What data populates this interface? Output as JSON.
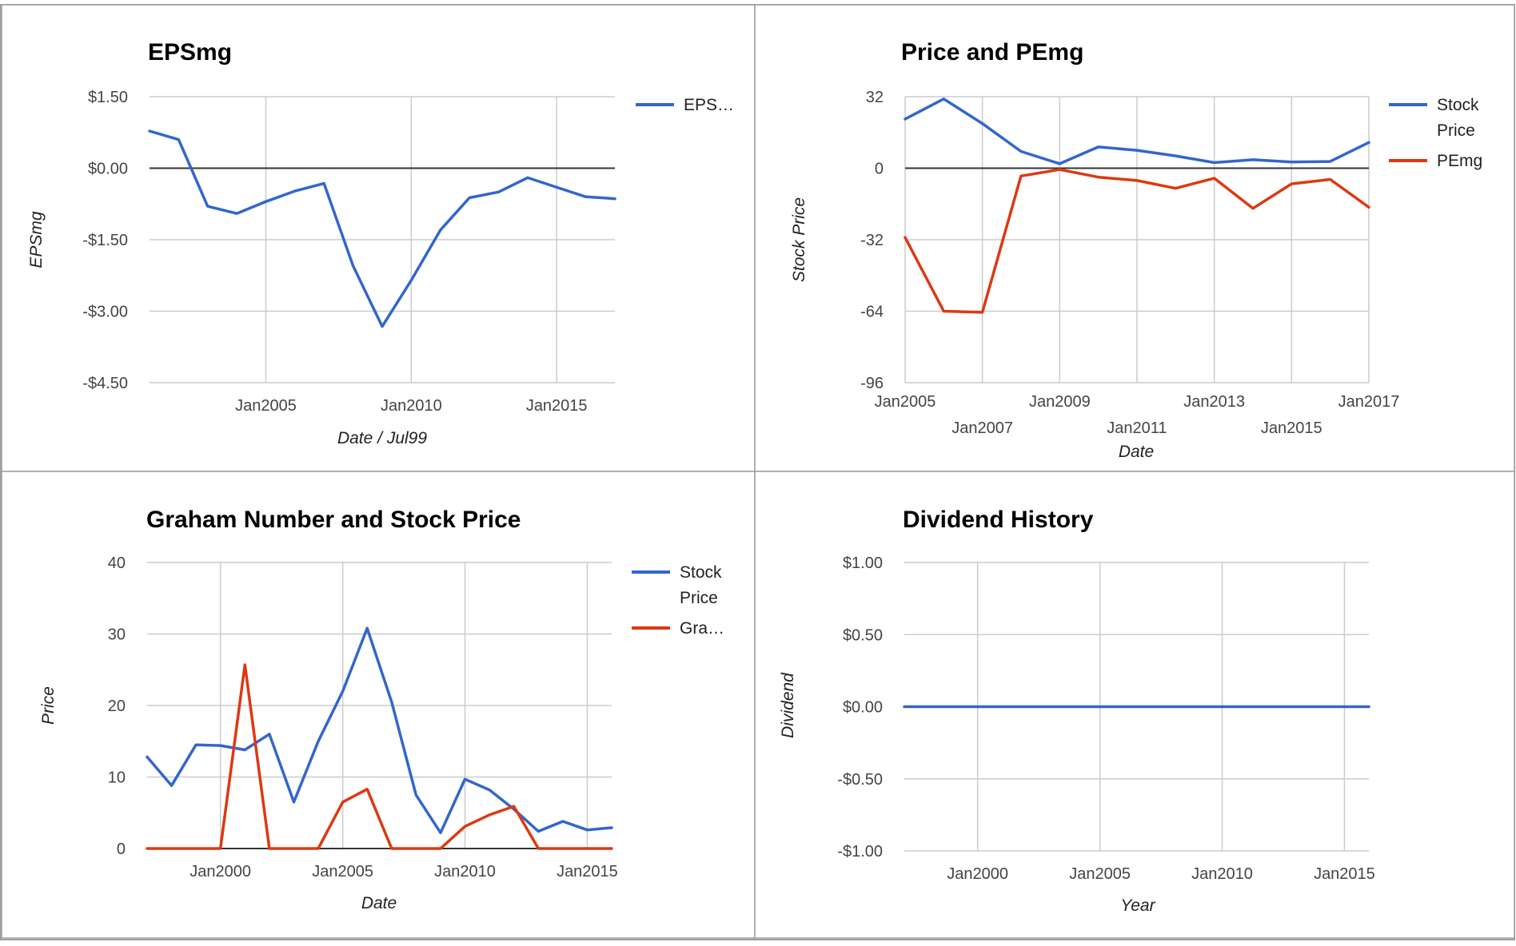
{
  "colors": {
    "series_blue": "#3366cc",
    "series_red": "#dc3912",
    "grid": "#cccccc",
    "zero_line": "#333333",
    "frame": "#9e9e9e",
    "text": "#444444",
    "title": "#000000"
  },
  "chart_data": [
    {
      "id": "epsmg",
      "type": "line",
      "title": "EPSmg",
      "xlabel": "Date / Jul99",
      "ylabel": "EPSmg",
      "x_type": "date",
      "xlim": [
        "2001-01-01",
        "2017-01-01"
      ],
      "ylim": [
        -4.5,
        1.5
      ],
      "y_ticks": [
        1.5,
        0,
        -1.5,
        -3,
        -4.5
      ],
      "y_tick_labels": [
        "$1.50",
        "$0.00",
        "-$1.50",
        "-$3.00",
        "-$4.50"
      ],
      "x_ticks": [
        "2005-01-01",
        "2010-01-01",
        "2015-01-01"
      ],
      "x_tick_labels": [
        "Jan2005",
        "Jan2010",
        "Jan2015"
      ],
      "x_gridlines": true,
      "y_gridlines": true,
      "legend_position": "right",
      "legend": [
        "EPS…"
      ],
      "series": [
        {
          "name": "EPS…",
          "color": "#3366cc",
          "points": [
            [
              "2001-01-01",
              0.78
            ],
            [
              "2002-01-01",
              0.6
            ],
            [
              "2003-01-01",
              -0.8
            ],
            [
              "2004-01-01",
              -0.95
            ],
            [
              "2005-01-01",
              -0.7
            ],
            [
              "2006-01-01",
              -0.48
            ],
            [
              "2007-01-01",
              -0.32
            ],
            [
              "2008-01-01",
              -2.05
            ],
            [
              "2009-01-01",
              -3.32
            ],
            [
              "2010-01-01",
              -2.35
            ],
            [
              "2011-01-01",
              -1.3
            ],
            [
              "2012-01-01",
              -0.62
            ],
            [
              "2013-01-01",
              -0.5
            ],
            [
              "2014-01-01",
              -0.2
            ],
            [
              "2015-01-01",
              -0.4
            ],
            [
              "2016-01-01",
              -0.6
            ],
            [
              "2017-01-01",
              -0.64
            ]
          ]
        }
      ]
    },
    {
      "id": "price-pemg",
      "type": "line",
      "title": "Price and PEmg",
      "xlabel": "Date",
      "ylabel": "Stock Price",
      "x_type": "date",
      "xlim": [
        "2005-01-01",
        "2017-01-01"
      ],
      "ylim": [
        -96,
        32
      ],
      "y_ticks": [
        32,
        0,
        -32,
        -64,
        -96
      ],
      "y_tick_labels": [
        "32",
        "0",
        "-32",
        "-64",
        "-96"
      ],
      "x_ticks": [
        "2005-01-01",
        "2007-01-01",
        "2009-01-01",
        "2011-01-01",
        "2013-01-01",
        "2015-01-01",
        "2017-01-01"
      ],
      "x_tick_labels": [
        "Jan2005",
        "Jan2007",
        "Jan2009",
        "Jan2011",
        "Jan2013",
        "Jan2015",
        "Jan2017"
      ],
      "x_gridlines": true,
      "y_gridlines": true,
      "legend_position": "right",
      "legend": [
        "Stock Price",
        "PEmg"
      ],
      "series": [
        {
          "name": "Stock Price",
          "color": "#3366cc",
          "points": [
            [
              "2005-01-01",
              22
            ],
            [
              "2006-01-01",
              31
            ],
            [
              "2007-01-01",
              20
            ],
            [
              "2008-01-01",
              7.5
            ],
            [
              "2009-01-01",
              2
            ],
            [
              "2010-01-01",
              9.5
            ],
            [
              "2011-01-01",
              8
            ],
            [
              "2012-01-01",
              5.5
            ],
            [
              "2013-01-01",
              2.5
            ],
            [
              "2014-01-01",
              3.8
            ],
            [
              "2015-01-01",
              2.8
            ],
            [
              "2016-01-01",
              3
            ],
            [
              "2017-01-01",
              11.5
            ]
          ]
        },
        {
          "name": "PEmg",
          "color": "#dc3912",
          "points": [
            [
              "2005-01-01",
              -31
            ],
            [
              "2006-01-01",
              -64
            ],
            [
              "2007-01-01",
              -64.5
            ],
            [
              "2008-01-01",
              -3.5
            ],
            [
              "2009-01-01",
              -0.6
            ],
            [
              "2010-01-01",
              -4
            ],
            [
              "2011-01-01",
              -5.5
            ],
            [
              "2012-01-01",
              -9
            ],
            [
              "2013-01-01",
              -4.5
            ],
            [
              "2014-01-01",
              -18
            ],
            [
              "2015-01-01",
              -7
            ],
            [
              "2016-01-01",
              -5
            ],
            [
              "2017-01-01",
              -17.5
            ]
          ]
        }
      ]
    },
    {
      "id": "graham",
      "type": "line",
      "title": "Graham Number and Stock Price",
      "xlabel": "Date",
      "ylabel": "Price",
      "x_type": "date",
      "xlim": [
        "1997-01-01",
        "2016-01-01"
      ],
      "ylim": [
        0,
        40
      ],
      "y_ticks": [
        40,
        30,
        20,
        10,
        0
      ],
      "y_tick_labels": [
        "40",
        "30",
        "20",
        "10",
        "0"
      ],
      "x_ticks": [
        "2000-01-01",
        "2005-01-01",
        "2010-01-01",
        "2015-01-01"
      ],
      "x_tick_labels": [
        "Jan2000",
        "Jan2005",
        "Jan2010",
        "Jan2015"
      ],
      "x_gridlines": true,
      "y_gridlines": true,
      "legend_position": "right",
      "legend": [
        "Stock Price",
        "Gra…"
      ],
      "series": [
        {
          "name": "Stock Price",
          "color": "#3366cc",
          "points": [
            [
              "1997-01-01",
              12.8
            ],
            [
              "1998-01-01",
              8.8
            ],
            [
              "1999-01-01",
              14.5
            ],
            [
              "2000-01-01",
              14.4
            ],
            [
              "2001-01-01",
              13.8
            ],
            [
              "2002-01-01",
              16
            ],
            [
              "2003-01-01",
              6.5
            ],
            [
              "2004-01-01",
              15
            ],
            [
              "2005-01-01",
              22
            ],
            [
              "2006-01-01",
              30.8
            ],
            [
              "2007-01-01",
              20.5
            ],
            [
              "2008-01-01",
              7.5
            ],
            [
              "2009-01-01",
              2.2
            ],
            [
              "2010-01-01",
              9.7
            ],
            [
              "2011-01-01",
              8.2
            ],
            [
              "2012-01-01",
              5.5
            ],
            [
              "2013-01-01",
              2.4
            ],
            [
              "2014-01-01",
              3.8
            ],
            [
              "2015-01-01",
              2.6
            ],
            [
              "2016-01-01",
              2.9
            ]
          ]
        },
        {
          "name": "Gra…",
          "color": "#dc3912",
          "points": [
            [
              "1997-01-01",
              0
            ],
            [
              "1998-01-01",
              0
            ],
            [
              "1999-01-01",
              0
            ],
            [
              "2000-01-01",
              0
            ],
            [
              "2001-01-01",
              25.7
            ],
            [
              "2002-01-01",
              0
            ],
            [
              "2003-01-01",
              0
            ],
            [
              "2004-01-01",
              0
            ],
            [
              "2005-01-01",
              6.5
            ],
            [
              "2006-01-01",
              8.3
            ],
            [
              "2007-01-01",
              0
            ],
            [
              "2008-01-01",
              0
            ],
            [
              "2009-01-01",
              0
            ],
            [
              "2010-01-01",
              3.1
            ],
            [
              "2011-01-01",
              4.7
            ],
            [
              "2012-01-01",
              5.9
            ],
            [
              "2013-01-01",
              0
            ],
            [
              "2014-01-01",
              0
            ],
            [
              "2015-01-01",
              0
            ],
            [
              "2016-01-01",
              0
            ]
          ]
        }
      ]
    },
    {
      "id": "dividend",
      "type": "line",
      "title": "Dividend History",
      "xlabel": "Year",
      "ylabel": "Dividend",
      "x_type": "date",
      "xlim": [
        "1997-01-01",
        "2016-01-01"
      ],
      "ylim": [
        -1,
        1
      ],
      "y_ticks": [
        1,
        0.5,
        0,
        -0.5,
        -1
      ],
      "y_tick_labels": [
        "$1.00",
        "$0.50",
        "$0.00",
        "-$0.50",
        "-$1.00"
      ],
      "x_ticks": [
        "2000-01-01",
        "2005-01-01",
        "2010-01-01",
        "2015-01-01"
      ],
      "x_tick_labels": [
        "Jan2000",
        "Jan2005",
        "Jan2010",
        "Jan2015"
      ],
      "x_gridlines": true,
      "y_gridlines": true,
      "legend_position": "none",
      "legend": [],
      "series": [
        {
          "name": "",
          "color": "#3366cc",
          "points": [
            [
              "1997-01-01",
              0
            ],
            [
              "2001-01-01",
              0
            ],
            [
              "2005-01-01",
              0
            ],
            [
              "2009-01-01",
              0
            ],
            [
              "2013-01-01",
              0
            ],
            [
              "2016-01-01",
              0
            ]
          ]
        }
      ]
    }
  ]
}
